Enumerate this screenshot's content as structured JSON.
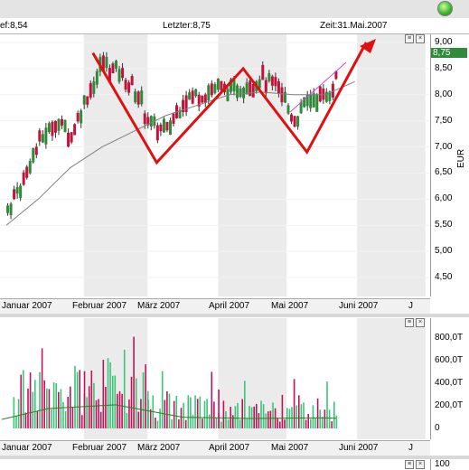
{
  "header": {
    "close_label": "ef:8,54",
    "last_label": "Letzter:8,75",
    "time_label": "Zeit:31.Mai.2007"
  },
  "price_panel": {
    "unit": "EUR",
    "last_badge": "8,75",
    "yticks": [
      "9,00",
      "8,50",
      "8,00",
      "7,50",
      "7,00",
      "6,50",
      "6,00",
      "5,50",
      "5,00",
      "4,50"
    ]
  },
  "volume_panel": {
    "yticks": [
      "800,0T",
      "600,0T",
      "400,0T",
      "200,0T",
      "0"
    ]
  },
  "bottom_panel": {
    "ytick": "100"
  },
  "x_axis": {
    "labels": [
      "Januar 2007",
      "Februar 2007",
      "März 2007",
      "April 2007",
      "Mai 2007",
      "Juni 2007",
      "J"
    ]
  },
  "colors": {
    "up": "#2e8b3a",
    "down": "#c0143c",
    "pattern": "#e01010",
    "vol_up": "#3cc47a",
    "vol_down": "#c0145a",
    "ma": "#808080",
    "vol_ma": "#2e7d1e",
    "shade": "#ebebeb"
  },
  "chart_data": [
    {
      "type": "line",
      "title": "",
      "ylabel": "EUR",
      "ylim": [
        4.2,
        9.1
      ],
      "series": [
        {
          "x": [
            "2006-12-29",
            "2007-01-05",
            "2007-01-12",
            "2007-01-19",
            "2007-01-26",
            "2007-02-02",
            "2007-02-09",
            "2007-02-16",
            "2007-02-23",
            "2007-03-02",
            "2007-03-09",
            "2007-03-16",
            "2007-03-23",
            "2007-03-30",
            "2007-04-06",
            "2007-04-13",
            "2007-04-20",
            "2007-04-27",
            "2007-05-04",
            "2007-05-11",
            "2007-05-18",
            "2007-05-25",
            "2007-05-31"
          ],
          "values": [
            5.8,
            6.4,
            7.1,
            7.5,
            7.2,
            8.0,
            8.6,
            8.4,
            8.1,
            7.4,
            7.3,
            7.9,
            8.0,
            8.1,
            8.1,
            8.2,
            8.3,
            8.1,
            7.5,
            7.9,
            8.0,
            8.5,
            8.75
          ]
        },
        {
          "x": [
            "2006-12-29",
            "2007-01-12",
            "2007-01-26",
            "2007-02-09",
            "2007-02-23",
            "2007-03-09",
            "2007-03-23",
            "2007-04-06",
            "2007-04-20",
            "2007-05-04",
            "2007-05-18",
            "2007-05-31"
          ],
          "values": [
            5.5,
            6.0,
            6.6,
            7.0,
            7.3,
            7.6,
            7.8,
            8.0,
            8.05,
            8.0,
            8.0,
            8.25
          ]
        },
        {
          "x": [
            "2007-02-05",
            "2007-03-05",
            "2007-04-12",
            "2007-05-10",
            "2007-06-05"
          ],
          "values": [
            8.8,
            6.7,
            8.5,
            6.9,
            9.0
          ]
        }
      ]
    },
    {
      "type": "bar",
      "title": "",
      "ylim": [
        0,
        900
      ],
      "categories": [
        "Jan",
        "Feb",
        "Mär",
        "Apr",
        "Mai"
      ],
      "values": [
        320,
        380,
        180,
        160,
        170
      ]
    }
  ]
}
